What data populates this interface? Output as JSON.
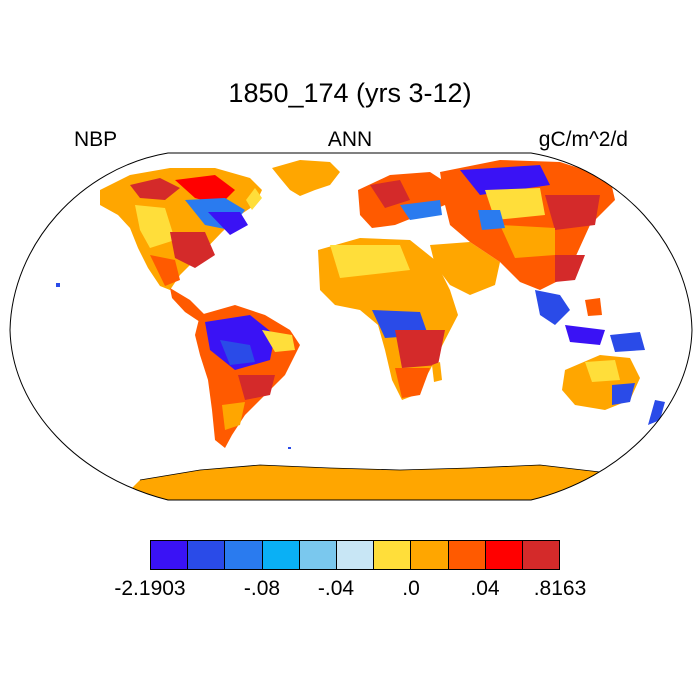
{
  "title": "1850_174 (yrs 3-12)",
  "left_label": "NBP",
  "center_label": "ANN",
  "right_label": "gC/m^2/d",
  "colorbar": {
    "colors": [
      "#3a12f5",
      "#2a4be8",
      "#2a7bef",
      "#0ab0f5",
      "#7ac8ee",
      "#c8e6f5",
      "#ffde3a",
      "#ffa600",
      "#ff5a00",
      "#ff0000",
      "#d42a2a"
    ],
    "labels": [
      "-2.1903",
      "-.08",
      "-.04",
      ".0",
      ".04",
      ".8163"
    ]
  },
  "map": {
    "projection": "Robinson",
    "ocean_color": "#ffffff",
    "coastline_color": "#000000"
  }
}
